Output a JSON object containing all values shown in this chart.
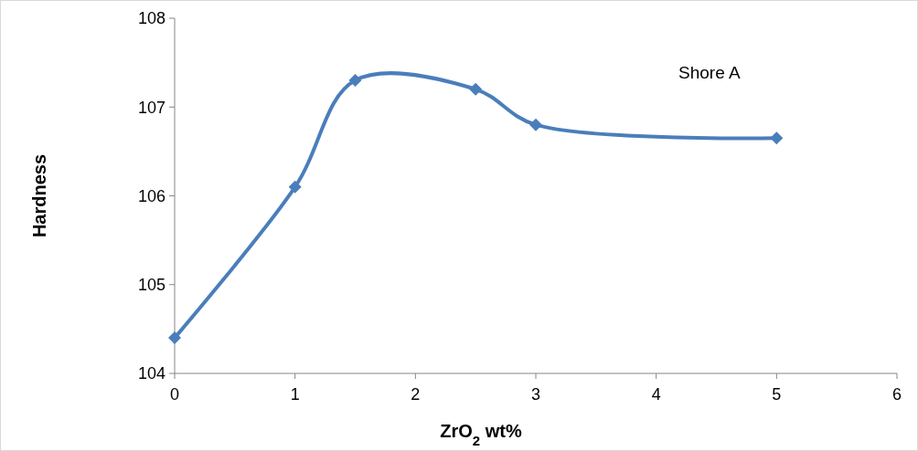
{
  "chart_data": {
    "type": "line",
    "xlabel": "ZrO$_{2}$  wt%",
    "ylabel": "Hardness",
    "annotations": [
      "Shore A"
    ],
    "x": [
      0,
      1,
      1.5,
      2.5,
      3,
      5
    ],
    "series": [
      {
        "color": "#4a7ebb",
        "values": [
          104.4,
          106.1,
          107.3,
          107.2,
          106.8,
          106.65
        ]
      }
    ],
    "xlim": [
      0,
      6
    ],
    "xticks": [
      0,
      1,
      2,
      3,
      4,
      5,
      6
    ],
    "ylim": [
      104,
      108
    ],
    "yticks": [
      104,
      105,
      106,
      107,
      108
    ],
    "grid": false,
    "marker": "diamond",
    "line_style": "solid"
  }
}
